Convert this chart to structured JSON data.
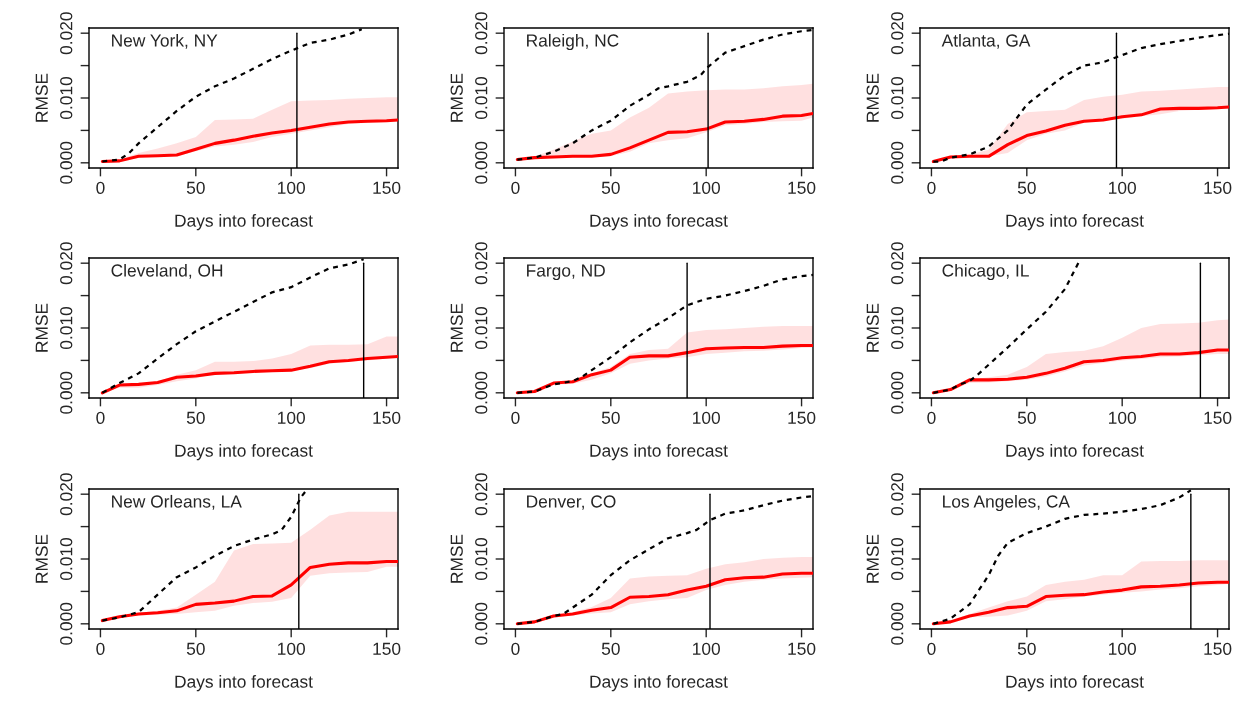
{
  "chart_data": [
    {
      "type": "line",
      "title": "New York, NY",
      "xlabel": "Days into forecast",
      "ylabel": "RMSE",
      "xlim": [
        -6,
        156
      ],
      "ylim": [
        -0.0008,
        0.0208
      ],
      "xticks": [
        0,
        50,
        100,
        150
      ],
      "yticks": [
        {
          "value": 0,
          "label": "0.000"
        },
        {
          "value": 0.005,
          "label": null
        },
        {
          "value": 0.01,
          "label": "0.010"
        },
        {
          "value": 0.015,
          "label": null
        },
        {
          "value": 0.02,
          "label": "0.020"
        }
      ],
      "ref_lines": [
        {
          "axis": "x",
          "value": 103,
          "color": "#000000"
        }
      ],
      "series": [
        {
          "color": "#ff0000",
          "line_style": "solid",
          "x": [
            1,
            10,
            20,
            30,
            40,
            50,
            60,
            70,
            80,
            90,
            100,
            110,
            120,
            130,
            140,
            150,
            156
          ],
          "values": [
            0.0002,
            0.0003,
            0.001,
            0.0011,
            0.0012,
            0.0021,
            0.003,
            0.0035,
            0.0041,
            0.0046,
            0.005,
            0.0055,
            0.006,
            0.0063,
            0.0064,
            0.0065,
            0.0066
          ],
          "lower": [
            0.0002,
            0.0003,
            0.0008,
            0.0009,
            0.001,
            0.0018,
            0.0025,
            0.0028,
            0.0032,
            0.004,
            0.0045,
            0.005,
            0.0055,
            0.006,
            0.0062,
            0.0063,
            0.0064
          ],
          "upper": [
            0.0002,
            0.0005,
            0.0015,
            0.0022,
            0.003,
            0.004,
            0.0066,
            0.0067,
            0.0068,
            0.0082,
            0.0095,
            0.0096,
            0.0097,
            0.0099,
            0.01,
            0.0101,
            0.0101
          ]
        },
        {
          "color": "#000000",
          "line_style": "dashed",
          "x": [
            1,
            10,
            15,
            20,
            30,
            40,
            50,
            60,
            70,
            80,
            90,
            100,
            110,
            120,
            130,
            137
          ],
          "values": [
            0.0002,
            0.0005,
            0.0015,
            0.003,
            0.0055,
            0.008,
            0.0102,
            0.0118,
            0.013,
            0.0145,
            0.016,
            0.0173,
            0.0185,
            0.019,
            0.0198,
            0.0206
          ]
        }
      ]
    },
    {
      "type": "line",
      "title": "Raleigh, NC",
      "xlabel": "Days into forecast",
      "ylabel": "RMSE",
      "xlim": [
        -6,
        156
      ],
      "ylim": [
        -0.0008,
        0.0208
      ],
      "xticks": [
        0,
        50,
        100,
        150
      ],
      "yticks": [
        {
          "value": 0,
          "label": "0.000"
        },
        {
          "value": 0.005,
          "label": null
        },
        {
          "value": 0.01,
          "label": "0.010"
        },
        {
          "value": 0.015,
          "label": null
        },
        {
          "value": 0.02,
          "label": "0.020"
        }
      ],
      "ref_lines": [
        {
          "axis": "x",
          "value": 101,
          "color": "#000000"
        }
      ],
      "series": [
        {
          "color": "#ff0000",
          "line_style": "solid",
          "x": [
            1,
            10,
            20,
            30,
            40,
            50,
            60,
            70,
            80,
            90,
            100,
            110,
            120,
            130,
            140,
            150,
            156
          ],
          "values": [
            0.0005,
            0.0008,
            0.0009,
            0.001,
            0.001,
            0.0013,
            0.0023,
            0.0035,
            0.0047,
            0.0048,
            0.0052,
            0.0063,
            0.0064,
            0.0067,
            0.0072,
            0.0073,
            0.0076
          ],
          "lower": [
            0.0005,
            0.0007,
            0.0008,
            0.0008,
            0.0009,
            0.001,
            0.0017,
            0.003,
            0.0035,
            0.0038,
            0.0047,
            0.0058,
            0.006,
            0.0063,
            0.0064,
            0.0065,
            0.007
          ],
          "upper": [
            0.0005,
            0.001,
            0.002,
            0.0033,
            0.0045,
            0.005,
            0.007,
            0.0085,
            0.0107,
            0.011,
            0.0112,
            0.0113,
            0.0113,
            0.0115,
            0.0118,
            0.012,
            0.0122
          ]
        },
        {
          "color": "#000000",
          "line_style": "dashed",
          "x": [
            1,
            10,
            20,
            30,
            40,
            50,
            60,
            70,
            75,
            80,
            90,
            97,
            101,
            110,
            120,
            130,
            140,
            150,
            156
          ],
          "values": [
            0.0005,
            0.0008,
            0.0017,
            0.003,
            0.005,
            0.0065,
            0.0088,
            0.0105,
            0.0115,
            0.0118,
            0.0125,
            0.0135,
            0.0148,
            0.017,
            0.018,
            0.019,
            0.0198,
            0.0203,
            0.0205
          ]
        }
      ]
    },
    {
      "type": "line",
      "title": "Atlanta, GA",
      "xlabel": "Days into forecast",
      "ylabel": "RMSE",
      "xlim": [
        -6,
        156
      ],
      "ylim": [
        -0.0008,
        0.0208
      ],
      "xticks": [
        0,
        50,
        100,
        150
      ],
      "yticks": [
        {
          "value": 0,
          "label": "0.000"
        },
        {
          "value": 0.005,
          "label": null
        },
        {
          "value": 0.01,
          "label": "0.010"
        },
        {
          "value": 0.015,
          "label": null
        },
        {
          "value": 0.02,
          "label": "0.020"
        }
      ],
      "ref_lines": [
        {
          "axis": "x",
          "value": 97,
          "color": "#000000"
        }
      ],
      "series": [
        {
          "color": "#ff0000",
          "line_style": "solid",
          "x": [
            1,
            10,
            20,
            30,
            40,
            50,
            60,
            70,
            80,
            90,
            100,
            110,
            120,
            130,
            140,
            150,
            156
          ],
          "values": [
            0.0002,
            0.0009,
            0.001,
            0.001,
            0.0028,
            0.0042,
            0.0049,
            0.0058,
            0.0064,
            0.0066,
            0.0071,
            0.0074,
            0.0083,
            0.0084,
            0.0084,
            0.0085,
            0.0086
          ],
          "lower": [
            0.0002,
            0.0008,
            0.0009,
            0.001,
            0.0015,
            0.0035,
            0.0045,
            0.005,
            0.0062,
            0.0065,
            0.0068,
            0.0072,
            0.0075,
            0.008,
            0.0082,
            0.0083,
            0.0083
          ],
          "upper": [
            0.0002,
            0.001,
            0.0013,
            0.002,
            0.006,
            0.0078,
            0.008,
            0.0082,
            0.0097,
            0.0102,
            0.0105,
            0.011,
            0.0111,
            0.0113,
            0.0115,
            0.0117,
            0.0117
          ]
        },
        {
          "color": "#000000",
          "line_style": "dashed",
          "x": [
            1,
            5,
            10,
            20,
            30,
            40,
            50,
            60,
            70,
            80,
            90,
            97,
            110,
            120,
            130,
            140,
            150,
            156
          ],
          "values": [
            0.0002,
            0.0002,
            0.0008,
            0.0013,
            0.0025,
            0.005,
            0.009,
            0.0113,
            0.0135,
            0.015,
            0.0155,
            0.0163,
            0.0177,
            0.0183,
            0.0188,
            0.0193,
            0.0197,
            0.0199
          ]
        }
      ]
    },
    {
      "type": "line",
      "title": "Cleveland, OH",
      "xlabel": "Days into forecast",
      "ylabel": "RMSE",
      "xlim": [
        -6,
        156
      ],
      "ylim": [
        -0.0008,
        0.0208
      ],
      "xticks": [
        0,
        50,
        100,
        150
      ],
      "yticks": [
        {
          "value": 0,
          "label": "0.000"
        },
        {
          "value": 0.005,
          "label": null
        },
        {
          "value": 0.01,
          "label": "0.010"
        },
        {
          "value": 0.015,
          "label": null
        },
        {
          "value": 0.02,
          "label": "0.020"
        }
      ],
      "ref_lines": [
        {
          "axis": "x",
          "value": 138,
          "color": "#000000"
        }
      ],
      "series": [
        {
          "color": "#ff0000",
          "line_style": "solid",
          "x": [
            1,
            10,
            20,
            30,
            40,
            50,
            60,
            70,
            80,
            90,
            100,
            110,
            120,
            130,
            140,
            150,
            156
          ],
          "values": [
            0,
            0.0012,
            0.0013,
            0.0016,
            0.0024,
            0.0026,
            0.003,
            0.0031,
            0.0033,
            0.0034,
            0.0035,
            0.0041,
            0.0048,
            0.005,
            0.0053,
            0.0055,
            0.0056
          ],
          "lower": [
            0,
            0.0008,
            0.0008,
            0.0012,
            0.0018,
            0.0022,
            0.003,
            0.003,
            0.0032,
            0.0033,
            0.0034,
            0.0038,
            0.0045,
            0.0048,
            0.005,
            0.0053,
            0.0055
          ],
          "upper": [
            0,
            0.0013,
            0.0014,
            0.0017,
            0.0028,
            0.0035,
            0.0048,
            0.0048,
            0.0049,
            0.0053,
            0.006,
            0.0073,
            0.0074,
            0.0074,
            0.0075,
            0.0087,
            0.0087
          ]
        },
        {
          "color": "#000000",
          "line_style": "dashed",
          "x": [
            1,
            10,
            20,
            30,
            40,
            50,
            60,
            70,
            80,
            90,
            100,
            110,
            120,
            130,
            138
          ],
          "values": [
            0,
            0.0015,
            0.003,
            0.0053,
            0.0075,
            0.0095,
            0.011,
            0.0125,
            0.014,
            0.0155,
            0.0163,
            0.0178,
            0.0192,
            0.0198,
            0.0206
          ]
        }
      ]
    },
    {
      "type": "line",
      "title": "Fargo, ND",
      "xlabel": "Days into forecast",
      "ylabel": "RMSE",
      "xlim": [
        -6,
        156
      ],
      "ylim": [
        -0.0008,
        0.0208
      ],
      "xticks": [
        0,
        50,
        100,
        150
      ],
      "yticks": [
        {
          "value": 0,
          "label": "0.000"
        },
        {
          "value": 0.005,
          "label": null
        },
        {
          "value": 0.01,
          "label": "0.010"
        },
        {
          "value": 0.015,
          "label": null
        },
        {
          "value": 0.02,
          "label": "0.020"
        }
      ],
      "ref_lines": [
        {
          "axis": "x",
          "value": 90,
          "color": "#000000"
        }
      ],
      "series": [
        {
          "color": "#ff0000",
          "line_style": "solid",
          "x": [
            1,
            10,
            20,
            30,
            40,
            50,
            60,
            70,
            80,
            90,
            100,
            110,
            120,
            130,
            140,
            150,
            156
          ],
          "values": [
            0,
            0.0002,
            0.0015,
            0.0017,
            0.0028,
            0.0035,
            0.0055,
            0.0057,
            0.0057,
            0.0062,
            0.0068,
            0.0069,
            0.007,
            0.007,
            0.0072,
            0.0073,
            0.0073
          ],
          "lower": [
            0,
            0.0001,
            0.0012,
            0.0014,
            0.002,
            0.003,
            0.0045,
            0.005,
            0.0053,
            0.0055,
            0.006,
            0.0062,
            0.0064,
            0.0065,
            0.0067,
            0.0069,
            0.007
          ],
          "upper": [
            0,
            0.0003,
            0.0016,
            0.0019,
            0.003,
            0.004,
            0.006,
            0.0066,
            0.0068,
            0.0093,
            0.0097,
            0.0098,
            0.01,
            0.0102,
            0.0103,
            0.0103,
            0.0103
          ]
        },
        {
          "color": "#000000",
          "line_style": "dashed",
          "x": [
            1,
            10,
            20,
            30,
            35,
            40,
            50,
            60,
            70,
            80,
            90,
            100,
            110,
            120,
            130,
            140,
            150,
            156
          ],
          "values": [
            0,
            0.0002,
            0.0013,
            0.0018,
            0.0025,
            0.0035,
            0.0055,
            0.0078,
            0.0098,
            0.0115,
            0.0135,
            0.0145,
            0.015,
            0.0157,
            0.0165,
            0.0175,
            0.018,
            0.0182
          ]
        }
      ]
    },
    {
      "type": "line",
      "title": "Chicago, IL",
      "xlabel": "Days into forecast",
      "ylabel": "RMSE",
      "xlim": [
        -6,
        156
      ],
      "ylim": [
        -0.0008,
        0.0208
      ],
      "xticks": [
        0,
        50,
        100,
        150
      ],
      "yticks": [
        {
          "value": 0,
          "label": "0.000"
        },
        {
          "value": 0.005,
          "label": null
        },
        {
          "value": 0.01,
          "label": "0.010"
        },
        {
          "value": 0.015,
          "label": null
        },
        {
          "value": 0.02,
          "label": "0.020"
        }
      ],
      "ref_lines": [
        {
          "axis": "x",
          "value": 141,
          "color": "#000000"
        }
      ],
      "series": [
        {
          "color": "#ff0000",
          "line_style": "solid",
          "x": [
            1,
            10,
            20,
            30,
            40,
            50,
            60,
            70,
            80,
            90,
            100,
            110,
            120,
            130,
            140,
            150,
            156
          ],
          "values": [
            0,
            0.0005,
            0.002,
            0.002,
            0.0021,
            0.0024,
            0.003,
            0.0038,
            0.0048,
            0.005,
            0.0054,
            0.0056,
            0.006,
            0.006,
            0.0062,
            0.0066,
            0.0066
          ],
          "lower": [
            0,
            0.0003,
            0.0015,
            0.0016,
            0.0018,
            0.002,
            0.0025,
            0.0033,
            0.0042,
            0.0046,
            0.005,
            0.0052,
            0.0055,
            0.0056,
            0.0058,
            0.006,
            0.006
          ],
          "upper": [
            0,
            0.0006,
            0.002,
            0.0024,
            0.0028,
            0.004,
            0.006,
            0.0063,
            0.0065,
            0.0072,
            0.0085,
            0.01,
            0.0106,
            0.0107,
            0.0108,
            0.0112,
            0.0113
          ]
        },
        {
          "color": "#000000",
          "line_style": "dashed",
          "x": [
            1,
            10,
            15,
            20,
            25,
            40,
            50,
            60,
            70,
            78
          ],
          "values": [
            0,
            0.0005,
            0.0013,
            0.0018,
            0.003,
            0.007,
            0.0098,
            0.0125,
            0.016,
            0.0206
          ]
        }
      ]
    },
    {
      "type": "line",
      "title": "New Orleans, LA",
      "xlabel": "Days into forecast",
      "ylabel": "RMSE",
      "xlim": [
        -6,
        156
      ],
      "ylim": [
        -0.0008,
        0.0208
      ],
      "xticks": [
        0,
        50,
        100,
        150
      ],
      "yticks": [
        {
          "value": 0,
          "label": "0.000"
        },
        {
          "value": 0.005,
          "label": null
        },
        {
          "value": 0.01,
          "label": "0.010"
        },
        {
          "value": 0.015,
          "label": null
        },
        {
          "value": 0.02,
          "label": "0.020"
        }
      ],
      "ref_lines": [
        {
          "axis": "x",
          "value": 104,
          "color": "#000000"
        }
      ],
      "series": [
        {
          "color": "#ff0000",
          "line_style": "solid",
          "x": [
            1,
            10,
            20,
            30,
            40,
            50,
            60,
            70,
            80,
            90,
            100,
            110,
            120,
            130,
            140,
            150,
            156
          ],
          "values": [
            0.0005,
            0.0011,
            0.0015,
            0.0017,
            0.002,
            0.003,
            0.0032,
            0.0035,
            0.0042,
            0.0043,
            0.006,
            0.0087,
            0.0092,
            0.0094,
            0.0094,
            0.0096,
            0.0096
          ],
          "lower": [
            0.0005,
            0.001,
            0.0013,
            0.0014,
            0.0015,
            0.0018,
            0.002,
            0.0028,
            0.0032,
            0.0034,
            0.004,
            0.0074,
            0.0078,
            0.0079,
            0.008,
            0.0088,
            0.0088
          ],
          "upper": [
            0.0005,
            0.0012,
            0.0017,
            0.002,
            0.0025,
            0.0045,
            0.0065,
            0.0113,
            0.0123,
            0.0124,
            0.0125,
            0.0145,
            0.0167,
            0.0173,
            0.0173,
            0.0173,
            0.0173
          ]
        },
        {
          "color": "#000000",
          "line_style": "dashed",
          "x": [
            1,
            10,
            20,
            30,
            40,
            50,
            60,
            70,
            80,
            90,
            95,
            100,
            105,
            108
          ],
          "values": [
            0.0005,
            0.001,
            0.0018,
            0.0045,
            0.0072,
            0.0087,
            0.0105,
            0.012,
            0.013,
            0.0138,
            0.0145,
            0.0165,
            0.0195,
            0.0206
          ]
        }
      ]
    },
    {
      "type": "line",
      "title": "Denver, CO",
      "xlabel": "Days into forecast",
      "ylabel": "RMSE",
      "xlim": [
        -6,
        156
      ],
      "ylim": [
        -0.0008,
        0.0208
      ],
      "xticks": [
        0,
        50,
        100,
        150
      ],
      "yticks": [
        {
          "value": 0,
          "label": "0.000"
        },
        {
          "value": 0.005,
          "label": null
        },
        {
          "value": 0.01,
          "label": "0.010"
        },
        {
          "value": 0.015,
          "label": null
        },
        {
          "value": 0.02,
          "label": "0.020"
        }
      ],
      "ref_lines": [
        {
          "axis": "x",
          "value": 102,
          "color": "#000000"
        }
      ],
      "series": [
        {
          "color": "#ff0000",
          "line_style": "solid",
          "x": [
            1,
            10,
            20,
            30,
            40,
            50,
            60,
            70,
            80,
            90,
            100,
            110,
            120,
            130,
            140,
            150,
            156
          ],
          "values": [
            0,
            0.0003,
            0.0012,
            0.0015,
            0.0021,
            0.0025,
            0.0041,
            0.0042,
            0.0045,
            0.0052,
            0.0058,
            0.0068,
            0.0071,
            0.0072,
            0.0077,
            0.0078,
            0.0078
          ],
          "lower": [
            0,
            0.0002,
            0.0011,
            0.0013,
            0.0016,
            0.0018,
            0.003,
            0.0035,
            0.0038,
            0.004,
            0.0052,
            0.006,
            0.0065,
            0.0068,
            0.007,
            0.0071,
            0.0072
          ],
          "upper": [
            0,
            0.0004,
            0.0013,
            0.0018,
            0.0026,
            0.004,
            0.007,
            0.0073,
            0.0074,
            0.0075,
            0.0085,
            0.0092,
            0.0095,
            0.01,
            0.0102,
            0.0103,
            0.0103
          ]
        },
        {
          "color": "#000000",
          "line_style": "dashed",
          "x": [
            1,
            10,
            20,
            25,
            30,
            40,
            50,
            60,
            70,
            80,
            90,
            95,
            102,
            110,
            120,
            130,
            140,
            150,
            156
          ],
          "values": [
            0,
            0.0003,
            0.0012,
            0.0015,
            0.0025,
            0.0045,
            0.0075,
            0.0098,
            0.0115,
            0.0132,
            0.014,
            0.0145,
            0.016,
            0.017,
            0.0175,
            0.0183,
            0.019,
            0.0195,
            0.0197
          ]
        }
      ]
    },
    {
      "type": "line",
      "title": "Los Angeles, CA",
      "xlabel": "Days into forecast",
      "ylabel": "RMSE",
      "xlim": [
        -6,
        156
      ],
      "ylim": [
        -0.0008,
        0.0208
      ],
      "xticks": [
        0,
        50,
        100,
        150
      ],
      "yticks": [
        {
          "value": 0,
          "label": "0.000"
        },
        {
          "value": 0.005,
          "label": null
        },
        {
          "value": 0.01,
          "label": "0.010"
        },
        {
          "value": 0.015,
          "label": null
        },
        {
          "value": 0.02,
          "label": "0.020"
        }
      ],
      "ref_lines": [
        {
          "axis": "x",
          "value": 136,
          "color": "#000000"
        }
      ],
      "series": [
        {
          "color": "#ff0000",
          "line_style": "solid",
          "x": [
            1,
            10,
            20,
            30,
            40,
            50,
            60,
            70,
            80,
            90,
            100,
            110,
            120,
            130,
            140,
            150,
            156
          ],
          "values": [
            0,
            0.0003,
            0.0012,
            0.0018,
            0.0025,
            0.0027,
            0.0042,
            0.0044,
            0.0045,
            0.0049,
            0.0052,
            0.0057,
            0.0058,
            0.006,
            0.0063,
            0.0064,
            0.0064
          ],
          "lower": [
            0,
            0.0002,
            0.001,
            0.0011,
            0.0013,
            0.002,
            0.0035,
            0.0038,
            0.0042,
            0.0045,
            0.0048,
            0.005,
            0.0053,
            0.0055,
            0.0058,
            0.006,
            0.0062
          ],
          "upper": [
            0,
            0.0005,
            0.0015,
            0.0025,
            0.0035,
            0.0042,
            0.006,
            0.0065,
            0.0068,
            0.0075,
            0.0075,
            0.0096,
            0.0097,
            0.0097,
            0.0098,
            0.0098,
            0.0098
          ]
        },
        {
          "color": "#000000",
          "line_style": "dashed",
          "x": [
            1,
            10,
            20,
            30,
            35,
            40,
            50,
            60,
            70,
            80,
            90,
            100,
            110,
            120,
            130,
            136
          ],
          "values": [
            0,
            0.0008,
            0.003,
            0.0075,
            0.0105,
            0.0125,
            0.014,
            0.015,
            0.0162,
            0.0168,
            0.017,
            0.0173,
            0.0177,
            0.0183,
            0.0195,
            0.0206
          ]
        }
      ]
    }
  ]
}
